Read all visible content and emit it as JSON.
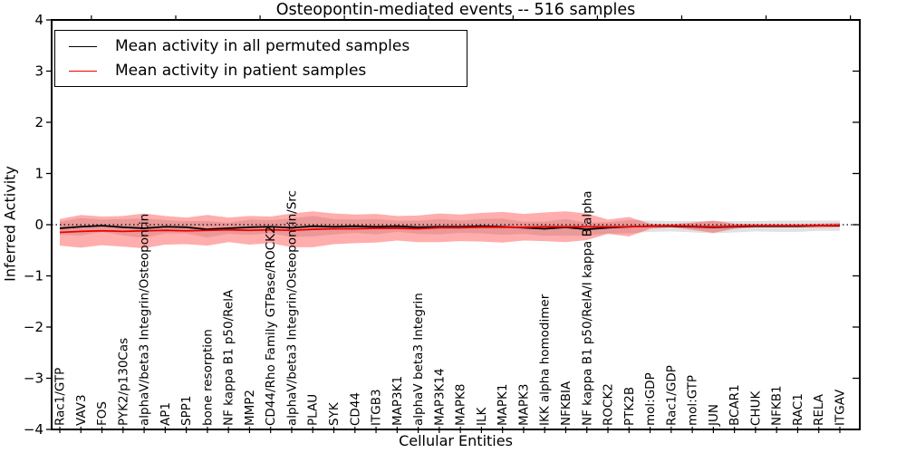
{
  "title": "Osteopontin-mediated events -- 516 samples",
  "axes": {
    "xlabel": "Cellular Entities",
    "ylabel": "Inferred Activity",
    "ytick_labels": [
      "4",
      "3",
      "2",
      "1",
      "0",
      "−1",
      "−2",
      "−3",
      "−4"
    ]
  },
  "legend": {
    "items": [
      {
        "label": "Mean activity in all permuted samples",
        "color": "#000000"
      },
      {
        "label": "Mean activity in patient samples",
        "color": "#f00000"
      }
    ]
  },
  "chart_data": {
    "type": "line",
    "title": "Osteopontin-mediated events -- 516 samples",
    "xlabel": "Cellular Entities",
    "ylabel": "Inferred Activity",
    "ylim": [
      -4,
      4
    ],
    "yticks": [
      4,
      3,
      2,
      1,
      0,
      -1,
      -2,
      -3,
      -4
    ],
    "grid": false,
    "legend_position": "upper left",
    "zero_line": {
      "y": 0,
      "style": "dotted",
      "color": "#000000"
    },
    "categories": [
      "Rac1/GTP",
      "VAV3",
      "FOS",
      "PYK2/p130Cas",
      "alphaV/beta3 Integrin/Osteopontin",
      "AP1",
      "SPP1",
      "bone resorption",
      "NF kappa B1 p50/RelA",
      "MMP2",
      "CD44/Rho Family GTPase/ROCK2",
      "alphaV/beta3 Integrin/Osteopontin/Src",
      "PLAU",
      "SYK",
      "CD44",
      "ITGB3",
      "MAP3K1",
      "alphaV beta3 Integrin",
      "MAP3K14",
      "MAPK8",
      "ILK",
      "MAPK1",
      "MAPK3",
      "IKK alpha homodimer",
      "NFKBIA",
      "NF kappa B1 p50/RelA/I kappa B alpha",
      "ROCK2",
      "PTK2B",
      "mol:GDP",
      "Rac1/GDP",
      "mol:GTP",
      "JUN",
      "BCAR1",
      "CHUK",
      "NFKB1",
      "RAC1",
      "RELA",
      "ITGAV"
    ],
    "series": [
      {
        "name": "Mean activity in all permuted samples",
        "color": "#000000",
        "band_color": "#888888",
        "band_opacity": 0.25,
        "values": [
          -0.07,
          -0.04,
          -0.02,
          -0.05,
          -0.07,
          -0.04,
          -0.05,
          -0.09,
          -0.07,
          -0.05,
          -0.04,
          -0.06,
          -0.03,
          -0.04,
          -0.03,
          -0.04,
          -0.03,
          -0.05,
          -0.04,
          -0.04,
          -0.03,
          -0.04,
          -0.06,
          -0.08,
          -0.05,
          -0.09,
          -0.06,
          -0.04,
          -0.03,
          -0.03,
          -0.04,
          -0.05,
          -0.04,
          -0.03,
          -0.03,
          -0.03,
          -0.02,
          -0.02
        ],
        "band_halfwidth": [
          0.13,
          0.17,
          0.12,
          0.16,
          0.19,
          0.13,
          0.12,
          0.16,
          0.11,
          0.15,
          0.13,
          0.18,
          0.2,
          0.15,
          0.13,
          0.15,
          0.11,
          0.13,
          0.15,
          0.12,
          0.14,
          0.16,
          0.12,
          0.14,
          0.16,
          0.13,
          0.11,
          0.13,
          0.11,
          0.1,
          0.11,
          0.12,
          0.11,
          0.1,
          0.11,
          0.11,
          0.1,
          0.1
        ]
      },
      {
        "name": "Mean activity in patient samples",
        "color": "#f00000",
        "band_color": "#ff0000",
        "band_opacity": 0.32,
        "values": [
          -0.15,
          -0.13,
          -0.12,
          -0.13,
          -0.12,
          -0.11,
          -0.12,
          -0.11,
          -0.1,
          -0.11,
          -0.1,
          -0.11,
          -0.09,
          -0.08,
          -0.08,
          -0.07,
          -0.07,
          -0.08,
          -0.06,
          -0.06,
          -0.05,
          -0.05,
          -0.05,
          -0.04,
          -0.04,
          -0.04,
          -0.04,
          -0.04,
          -0.03,
          -0.02,
          -0.03,
          -0.04,
          -0.03,
          -0.02,
          -0.02,
          -0.02,
          -0.02,
          -0.01
        ],
        "band_halfwidth": [
          0.26,
          0.32,
          0.28,
          0.3,
          0.34,
          0.28,
          0.26,
          0.3,
          0.24,
          0.28,
          0.26,
          0.33,
          0.35,
          0.3,
          0.28,
          0.28,
          0.24,
          0.26,
          0.28,
          0.26,
          0.28,
          0.3,
          0.26,
          0.28,
          0.3,
          0.26,
          0.14,
          0.19,
          0.05,
          0.03,
          0.07,
          0.12,
          0.05,
          0.03,
          0.03,
          0.03,
          0.04,
          0.04
        ]
      }
    ]
  }
}
